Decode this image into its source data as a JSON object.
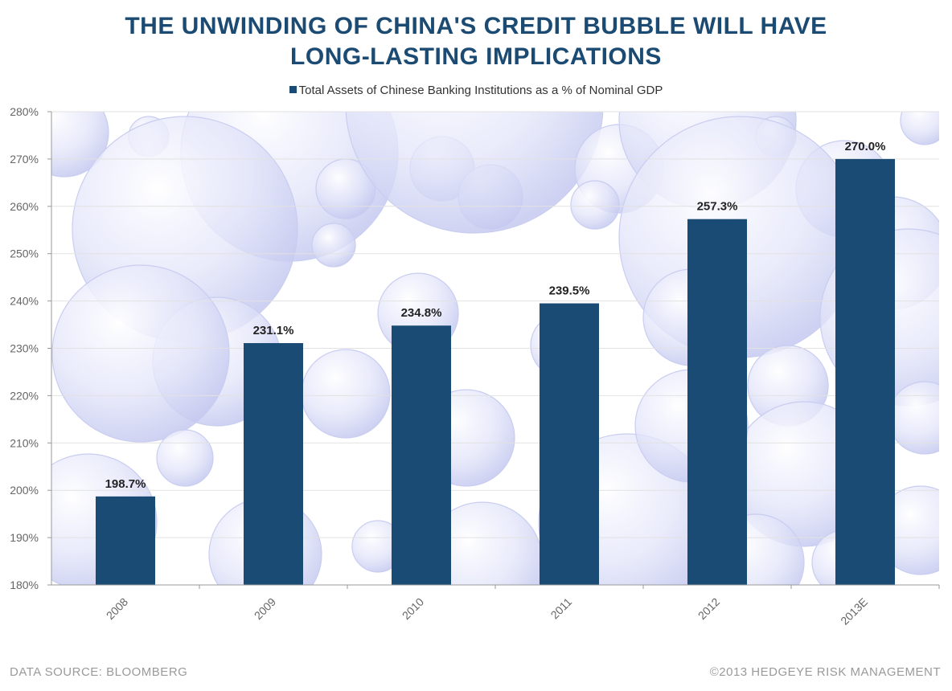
{
  "title_lines": [
    "THE UNWINDING OF CHINA'S CREDIT BUBBLE WILL HAVE",
    "LONG-LASTING IMPLICATIONS"
  ],
  "colors": {
    "bar": "#1a4b75",
    "title": "#1b4a72",
    "bubble": "#c9cdf0"
  },
  "chart_data": {
    "type": "bar",
    "title": "THE UNWINDING OF CHINA'S CREDIT BUBBLE WILL HAVE LONG-LASTING IMPLICATIONS",
    "categories": [
      "2008",
      "2009",
      "2010",
      "2011",
      "2012",
      "2013E"
    ],
    "series": [
      {
        "name": "Total Assets of Chinese Banking Institutions as a % of Nominal GDP",
        "values": [
          198.7,
          231.1,
          234.8,
          239.5,
          257.3,
          270.0
        ]
      }
    ],
    "data_labels": [
      "198.7%",
      "231.1%",
      "234.8%",
      "239.5%",
      "257.3%",
      "270.0%"
    ],
    "y_ticks": [
      "180%",
      "190%",
      "200%",
      "210%",
      "220%",
      "230%",
      "240%",
      "250%",
      "260%",
      "270%",
      "280%"
    ],
    "ylim": [
      180,
      280
    ],
    "xlabel": "",
    "ylabel": "",
    "legend_position": "top-center"
  },
  "footer": {
    "source": "DATA SOURCE:  BLOOMBERG",
    "copyright": "©2013 HEDGEYE RISK MANAGEMENT"
  }
}
